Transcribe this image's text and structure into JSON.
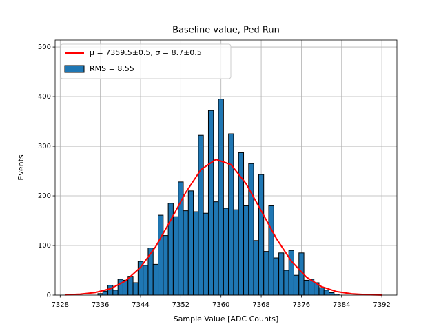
{
  "chart_data": {
    "type": "histogram",
    "title": "Baseline value, Ped Run",
    "xlabel": "Sample Value [ADC Counts]",
    "ylabel": "Events",
    "name": "RMS = 8.55",
    "color": "#1f77b4",
    "edgecolor": "#000000",
    "bins": [
      7335.5,
      7336.5,
      7337.5,
      7338.5,
      7339.5,
      7340.5,
      7341.5,
      7342.5,
      7343.5,
      7344.5,
      7345.5,
      7346.5,
      7347.5,
      7348.5,
      7349.5,
      7350.5,
      7351.5,
      7352.5,
      7353.5,
      7354.5,
      7355.5,
      7356.5,
      7357.5,
      7358.5,
      7359.5,
      7360.5,
      7361.5,
      7362.5,
      7363.5,
      7364.5,
      7365.5,
      7366.5,
      7367.5,
      7368.5,
      7369.5,
      7370.5,
      7371.5,
      7372.5,
      7373.5,
      7374.5,
      7375.5,
      7376.5,
      7377.5,
      7378.5,
      7379.5,
      7380.5,
      7381.5,
      7382.5,
      7383.5
    ],
    "values": [
      3,
      8,
      20,
      10,
      32,
      30,
      38,
      25,
      68,
      60,
      95,
      62,
      161,
      120,
      185,
      158,
      228,
      170,
      210,
      168,
      322,
      165,
      372,
      188,
      395,
      175,
      325,
      172,
      287,
      180,
      265,
      110,
      243,
      88,
      180,
      75,
      85,
      50,
      90,
      40,
      85,
      30,
      32,
      25,
      15,
      10,
      5,
      2
    ],
    "fit": {
      "type": "line",
      "name": "μ = 7359.5±0.5, σ = 8.7±0.5",
      "color": "#ff0000",
      "x": [
        7329,
        7332,
        7335,
        7338,
        7341,
        7344,
        7347,
        7350,
        7353,
        7356,
        7359,
        7362,
        7365,
        7368,
        7371,
        7374,
        7377,
        7380,
        7383,
        7386,
        7389,
        7392
      ],
      "values": [
        0.59,
        1.9,
        5.2,
        12.9,
        28.6,
        56.1,
        97.6,
        151,
        207,
        252.7,
        273.5,
        262.9,
        224.4,
        170,
        114.4,
        68.3,
        36.3,
        17.1,
        7.1,
        2.6,
        0.87,
        0.26
      ]
    },
    "xlim": [
      7327,
      7395
    ],
    "ylim": [
      0,
      514
    ],
    "xticks": [
      7328,
      7336,
      7344,
      7352,
      7360,
      7368,
      7376,
      7384,
      7392
    ],
    "yticks": [
      0,
      100,
      200,
      300,
      400,
      500
    ],
    "grid": true,
    "legend": "upper left"
  }
}
